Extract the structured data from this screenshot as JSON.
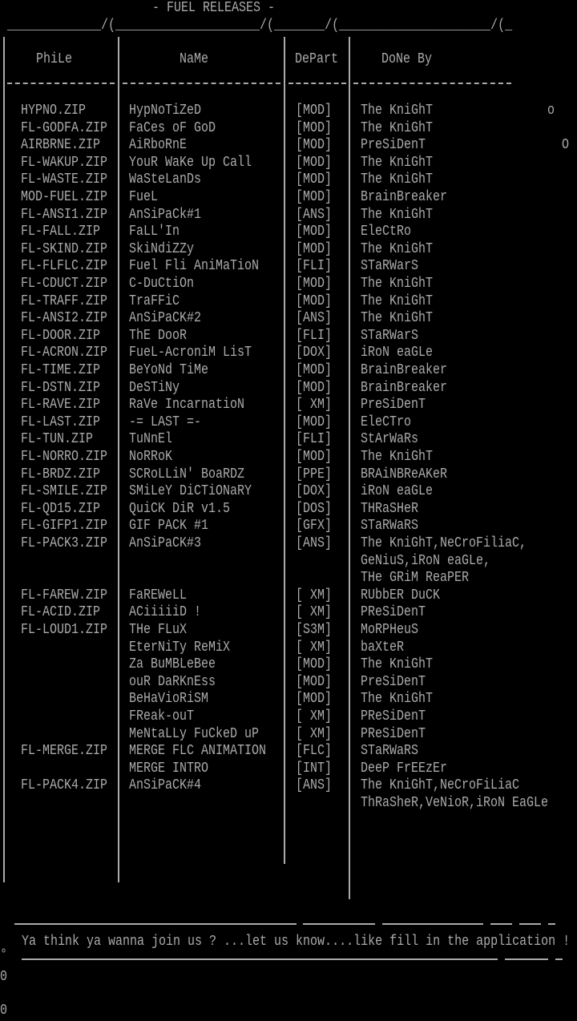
{
  "title": "- FUEL RELEASES -",
  "top_rule": "_____________/(____________________/(_______/(_____________________/(_",
  "columns": {
    "file": "PhiLe",
    "name": "NaMe",
    "depart": "DePart",
    "done_by": "DoNe By"
  },
  "rows": [
    {
      "file": "HYPNO.ZIP",
      "name": "HypNoTiZeD",
      "depart": "[MOD]",
      "done_by": "The KniGhT"
    },
    {
      "file": "FL-GODFA.ZIP",
      "name": "FaCes oF GoD",
      "depart": "[MOD]",
      "done_by": "The KniGhT"
    },
    {
      "file": "AIRBRNE.ZIP",
      "name": "AiRboRnE",
      "depart": "[MOD]",
      "done_by": "PreSiDenT"
    },
    {
      "file": "FL-WAKUP.ZIP",
      "name": "YouR WaKe Up Call",
      "depart": "[MOD]",
      "done_by": "The KniGhT"
    },
    {
      "file": "FL-WASTE.ZIP",
      "name": "WaSteLanDs",
      "depart": "[MOD]",
      "done_by": "The KniGhT"
    },
    {
      "file": "MOD-FUEL.ZIP",
      "name": "FueL",
      "depart": "[MOD]",
      "done_by": "BrainBreaker"
    },
    {
      "file": "FL-ANSI1.ZIP",
      "name": "AnSiPaCk#1",
      "depart": "[ANS]",
      "done_by": "The KniGhT"
    },
    {
      "file": "FL-FALL.ZIP",
      "name": "FaLL'In",
      "depart": "[MOD]",
      "done_by": "EleCtRo"
    },
    {
      "file": "FL-SKIND.ZIP",
      "name": "SkiNdiZZy",
      "depart": "[MOD]",
      "done_by": "The KniGhT"
    },
    {
      "file": "FL-FLFLC.ZIP",
      "name": "Fuel Fli AniMaTioN",
      "depart": "[FLI]",
      "done_by": "STaRWarS"
    },
    {
      "file": "FL-CDUCT.ZIP",
      "name": "C-DuCtiOn",
      "depart": "[MOD]",
      "done_by": "The KniGhT"
    },
    {
      "file": "FL-TRAFF.ZIP",
      "name": "TraFFiC",
      "depart": "[MOD]",
      "done_by": "The KniGhT"
    },
    {
      "file": "FL-ANSI2.ZIP",
      "name": "AnSiPaCK#2",
      "depart": "[ANS]",
      "done_by": "The KniGhT"
    },
    {
      "file": "FL-DOOR.ZIP",
      "name": "ThE DooR",
      "depart": "[FLI]",
      "done_by": "STaRWarS"
    },
    {
      "file": "FL-ACRON.ZIP",
      "name": "FueL-AcroniM LisT",
      "depart": "[DOX]",
      "done_by": "iRoN eaGLe"
    },
    {
      "file": "FL-TIME.ZIP",
      "name": "BeYoNd TiMe",
      "depart": "[MOD]",
      "done_by": "BrainBreaker"
    },
    {
      "file": "FL-DSTN.ZIP",
      "name": "DeSTiNy",
      "depart": "[MOD]",
      "done_by": "BrainBreaker"
    },
    {
      "file": "FL-RAVE.ZIP",
      "name": "RaVe IncarnatioN",
      "depart": "[ XM]",
      "done_by": "PreSiDenT"
    },
    {
      "file": "FL-LAST.ZIP",
      "name": "-= LAST =-",
      "depart": "[MOD]",
      "done_by": "EleCTro"
    },
    {
      "file": "FL-TUN.ZIP",
      "name": "TuNnEl",
      "depart": "[FLI]",
      "done_by": "StArWaRs"
    },
    {
      "file": "FL-NORRO.ZIP",
      "name": "NoRRoK",
      "depart": "[MOD]",
      "done_by": "The KniGhT"
    },
    {
      "file": "FL-BRDZ.ZIP",
      "name": "SCRoLLiN' BoaRDZ",
      "depart": "[PPE]",
      "done_by": "BRAiNBReAKeR"
    },
    {
      "file": "FL-SMILE.ZIP",
      "name": "SMiLeY DiCTiONaRY",
      "depart": "[DOX]",
      "done_by": "iRoN eaGLe"
    },
    {
      "file": "FL-QD15.ZIP",
      "name": "QuiCK DiR v1.5",
      "depart": "[DOS]",
      "done_by": "THRaSHeR"
    },
    {
      "file": "FL-GIFP1.ZIP",
      "name": "GIF PACK #1",
      "depart": "[GFX]",
      "done_by": "STaRWaRS"
    },
    {
      "file": "FL-PACK3.ZIP",
      "name": "AnSiPaCK#3",
      "depart": "[ANS]",
      "done_by": "The KniGhT,NeCroFiliaC,"
    },
    {
      "file": "",
      "name": "",
      "depart": "",
      "done_by": "GeNiuS,iRoN eaGLe,"
    },
    {
      "file": "",
      "name": "",
      "depart": "",
      "done_by": "THe GRiM ReaPER"
    },
    {
      "file": "FL-FAREW.ZIP",
      "name": "FaREWeLL",
      "depart": "[ XM]",
      "done_by": "RUbbER DuCK"
    },
    {
      "file": "FL-ACID.ZIP",
      "name": "ACiiiiiD !",
      "depart": "[ XM]",
      "done_by": "PReSiDenT"
    },
    {
      "file": "FL-LOUD1.ZIP",
      "name": "THe FLuX",
      "depart": "[S3M]",
      "done_by": "MoRPHeuS"
    },
    {
      "file": "",
      "name": "EterNiTy ReMiX",
      "depart": "[ XM]",
      "done_by": "baXteR"
    },
    {
      "file": "",
      "name": "Za BuMBLeBee",
      "depart": "[MOD]",
      "done_by": "The KniGhT"
    },
    {
      "file": "",
      "name": "ouR DaRKnEss",
      "depart": "[MOD]",
      "done_by": "PreSiDenT"
    },
    {
      "file": "",
      "name": "BeHaVioRiSM",
      "depart": "[MOD]",
      "done_by": "The KniGhT"
    },
    {
      "file": "",
      "name": "FReak-ouT",
      "depart": "[ XM]",
      "done_by": "PReSiDenT"
    },
    {
      "file": "",
      "name": "MeNtaLLy FuCkeD uP",
      "depart": "[ XM]",
      "done_by": "PReSiDenT"
    },
    {
      "file": "FL-MERGE.ZIP",
      "name": "MERGE FLC ANIMATION",
      "depart": "[FLC]",
      "done_by": "STaRWaRS"
    },
    {
      "file": "",
      "name": "MERGE INTRO",
      "depart": "[INT]",
      "done_by": "DeeP FrEEzEr"
    },
    {
      "file": "FL-PACK4.ZIP",
      "name": "AnSiPaCK#4",
      "depart": "[ANS]",
      "done_by": "The KniGhT,NeCroFiLiaC"
    },
    {
      "file": "",
      "name": "",
      "depart": "",
      "done_by": "ThRaSheR,VeNioR,iRoN EaGLe"
    }
  ],
  "decor": {
    "small_o": "o",
    "big_o": "O",
    "degree": "°",
    "zero": "0"
  },
  "footer": "Ya think ya wanna join us ? ...let us know....like fill in the application !",
  "colors": {
    "text": "#aaaaaa",
    "background": "#000000"
  }
}
